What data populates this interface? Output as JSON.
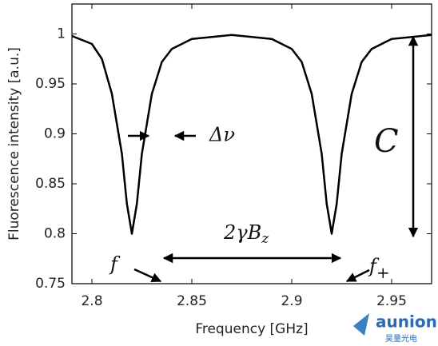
{
  "chart_data": {
    "type": "line",
    "x_label": "Frequency [GHz]",
    "y_label": "Fluorescence intensity [a.u.]",
    "x": [
      2.79,
      2.8,
      2.805,
      2.81,
      2.815,
      2.8175,
      2.82,
      2.8225,
      2.825,
      2.83,
      2.835,
      2.84,
      2.85,
      2.87,
      2.89,
      2.9,
      2.905,
      2.91,
      2.915,
      2.9175,
      2.92,
      2.9225,
      2.925,
      2.93,
      2.935,
      2.94,
      2.95,
      2.97
    ],
    "values": [
      0.998,
      0.99,
      0.975,
      0.94,
      0.88,
      0.83,
      0.8,
      0.83,
      0.88,
      0.94,
      0.972,
      0.985,
      0.995,
      0.999,
      0.995,
      0.985,
      0.972,
      0.94,
      0.88,
      0.83,
      0.8,
      0.83,
      0.88,
      0.94,
      0.972,
      0.985,
      0.995,
      0.999
    ],
    "color": "#000000",
    "xlim": [
      2.79,
      2.97
    ],
    "ylim": [
      0.75,
      1.03
    ],
    "xticks": [
      2.8,
      2.85,
      2.9,
      2.95
    ],
    "yticks": [
      0.75,
      0.8,
      0.85,
      0.9,
      0.95,
      1
    ],
    "annotations": {
      "linewidth": "Δν",
      "contrast": "C",
      "splitting": {
        "text": "2γB",
        "sub": "z"
      },
      "f_minus": "f",
      "f_plus": {
        "text": "f",
        "sub": "+"
      }
    }
  },
  "watermark": {
    "brand": "aunion",
    "sub": "昊量光电"
  }
}
